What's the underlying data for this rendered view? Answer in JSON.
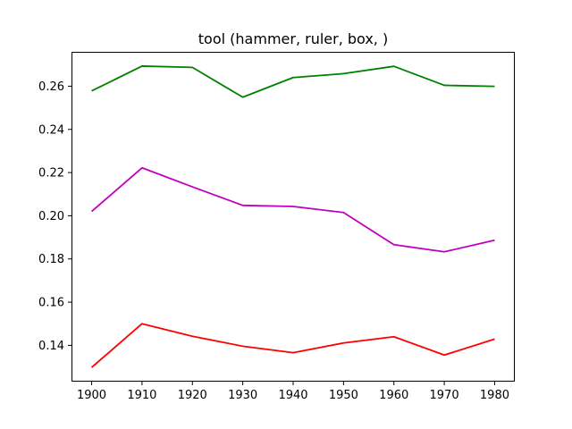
{
  "chart_data": {
    "type": "line",
    "title": "tool (hammer, ruler, box, )",
    "xlabel": "",
    "ylabel": "",
    "x": [
      1900,
      1910,
      1920,
      1930,
      1940,
      1950,
      1960,
      1970,
      1980
    ],
    "x_ticks": [
      1900,
      1910,
      1920,
      1930,
      1940,
      1950,
      1960,
      1970,
      1980
    ],
    "y_ticks": [
      0.14,
      0.16,
      0.18,
      0.2,
      0.22,
      0.24,
      0.26
    ],
    "y_tick_labels": [
      "0.14",
      "0.16",
      "0.18",
      "0.20",
      "0.22",
      "0.24",
      "0.26"
    ],
    "xlim": [
      1896,
      1984
    ],
    "ylim": [
      0.1232,
      0.2759
    ],
    "grid": false,
    "series": [
      {
        "color": "#008000",
        "values": [
          0.2578,
          0.2693,
          0.2687,
          0.2549,
          0.264,
          0.2658,
          0.2692,
          0.2604,
          0.2599
        ]
      },
      {
        "color": "#bf00bf",
        "values": [
          0.202,
          0.2222,
          0.2134,
          0.2048,
          0.2043,
          0.2015,
          0.1866,
          0.1833,
          0.1887
        ]
      },
      {
        "color": "#ff0000",
        "values": [
          0.1298,
          0.15,
          0.1442,
          0.1396,
          0.1366,
          0.1411,
          0.144,
          0.1355,
          0.1429
        ]
      }
    ]
  }
}
